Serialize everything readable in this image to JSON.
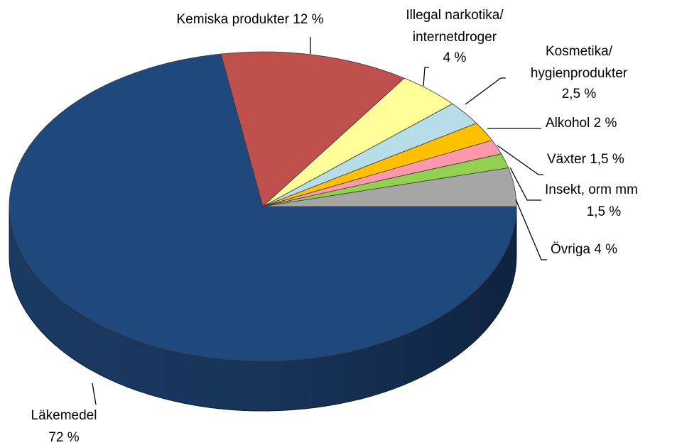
{
  "chart_data": {
    "type": "pie3d",
    "categories": [
      "Läkemedel",
      "Kemiska produkter",
      "Illegal narkotika/\ninternetdroger",
      "Kosmetika/\nhygienprodukter",
      "Alkohol",
      "Växter",
      "Insekt, orm mm",
      "Övriga"
    ],
    "values": [
      72,
      12,
      4,
      2.5,
      2,
      1.5,
      1.5,
      4
    ],
    "value_labels": [
      "72 %",
      "12 %",
      "4 %",
      "2,5 %",
      "2 %",
      "1,5 %",
      "1,5 %",
      "4 %"
    ],
    "colors": [
      "#1f497d",
      "#c0504d",
      "#ffff99",
      "#b7dee8",
      "#ffc000",
      "#ff99aa",
      "#92d050",
      "#a6a6a6"
    ]
  }
}
